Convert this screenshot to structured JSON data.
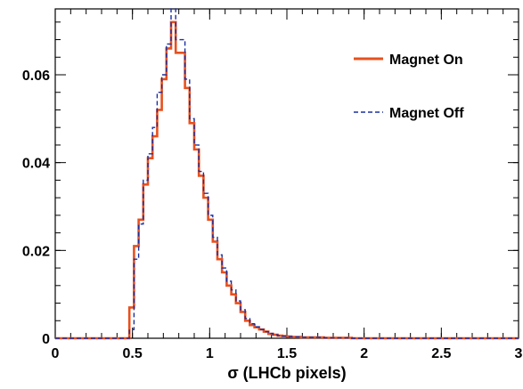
{
  "chart_data": {
    "type": "line",
    "subtype": "step-histogram",
    "xlabel": "σ (LHCb pixels)",
    "ylabel": "",
    "xlim": [
      0,
      3
    ],
    "ylim": [
      0,
      0.075
    ],
    "x_ticks": [
      "0",
      "0.5",
      "1",
      "1.5",
      "2",
      "2.5",
      "3"
    ],
    "y_ticks": [
      "0",
      "0.02",
      "0.04",
      "0.06"
    ],
    "x_tick_values": [
      0,
      0.5,
      1,
      1.5,
      2,
      2.5,
      3
    ],
    "y_tick_values": [
      0,
      0.02,
      0.04,
      0.06
    ],
    "bin_width": 0.03,
    "bin_edges_start": 0,
    "legend_position": "top-right",
    "series": [
      {
        "name": "Magnet On",
        "color": "#e8501e",
        "style": "solid",
        "values": [
          0,
          0,
          0,
          0,
          0,
          0,
          0,
          0,
          0,
          0,
          0,
          0,
          0,
          0,
          0,
          0,
          0.007,
          0.021,
          0.027,
          0.035,
          0.041,
          0.046,
          0.052,
          0.059,
          0.066,
          0.072,
          0.065,
          0.065,
          0.057,
          0.049,
          0.043,
          0.037,
          0.032,
          0.027,
          0.022,
          0.018,
          0.015,
          0.012,
          0.01,
          0.008,
          0.006,
          0.004,
          0.003,
          0.0025,
          0.002,
          0.0015,
          0.001,
          0.0008,
          0.0006,
          0.0005,
          0.0004,
          0.0003,
          0.0003,
          0.0002,
          0.0002,
          0.0002,
          0.0002,
          0.0002,
          0.0001,
          0.0001,
          0.0001,
          0.0001,
          0.0001,
          0.0001,
          0,
          0,
          0,
          0,
          0,
          0,
          0,
          0,
          0,
          0,
          0,
          0,
          0,
          0,
          0,
          0,
          0,
          0,
          0,
          0,
          0,
          0,
          0,
          0,
          0,
          0,
          0,
          0,
          0,
          0,
          0,
          0,
          0,
          0,
          0,
          0,
          0
        ]
      },
      {
        "name": "Magnet Off",
        "color": "#1a2fa0",
        "style": "dashed",
        "values": [
          0,
          0,
          0,
          0,
          0,
          0,
          0,
          0,
          0,
          0,
          0,
          0,
          0,
          0,
          0,
          0,
          0.002,
          0.018,
          0.026,
          0.036,
          0.042,
          0.048,
          0.056,
          0.06,
          0.067,
          0.075,
          0.068,
          0.068,
          0.059,
          0.05,
          0.044,
          0.038,
          0.033,
          0.028,
          0.023,
          0.019,
          0.016,
          0.013,
          0.011,
          0.0085,
          0.0065,
          0.0045,
          0.0033,
          0.0026,
          0.002,
          0.0015,
          0.0011,
          0.0008,
          0.0006,
          0.0005,
          0.0004,
          0.0003,
          0.0003,
          0.0002,
          0.0002,
          0.0002,
          0.0002,
          0.0002,
          0.0001,
          0.0001,
          0.0001,
          0.0001,
          0.0001,
          0.0001,
          0,
          0,
          0,
          0,
          0,
          0,
          0,
          0,
          0,
          0,
          0,
          0,
          0,
          0,
          0,
          0,
          0,
          0,
          0,
          0,
          0,
          0,
          0,
          0,
          0,
          0,
          0,
          0,
          0,
          0,
          0,
          0,
          0,
          0,
          0,
          0,
          0
        ]
      }
    ]
  }
}
